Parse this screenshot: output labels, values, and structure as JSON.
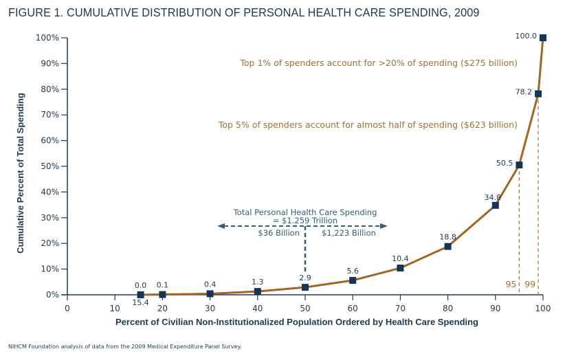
{
  "title": "FIGURE 1. CUMULATIVE DISTRIBUTION OF PERSONAL HEALTH CARE SPENDING, 2009",
  "source": "NIHCM Foundation analysis of data from the 2009 Medical Expenditure Panel Survey.",
  "colors": {
    "curve": "#a8621c",
    "marker": "#12365a",
    "axis": "#1b3a57",
    "annotation": "#a66f2e",
    "split": "#2f5f7a"
  },
  "chart_data": {
    "type": "line",
    "title": "FIGURE 1. CUMULATIVE DISTRIBUTION OF PERSONAL HEALTH CARE SPENDING, 2009",
    "xlabel": "Percent of Civilian Non-Institutionalized Population Ordered by Health Care Spending",
    "ylabel": "Cumulative Percent of Total Spending",
    "xlim": [
      0,
      100
    ],
    "ylim": [
      0,
      100
    ],
    "xticks": [
      "0",
      "10",
      "20",
      "30",
      "40",
      "50",
      "60",
      "70",
      "80",
      "90",
      "100"
    ],
    "yticks": [
      "0%",
      "10%",
      "20%",
      "30%",
      "40%",
      "50%",
      "60%",
      "70%",
      "80%",
      "90%",
      "100%"
    ],
    "x": [
      15.4,
      20,
      30,
      40,
      50,
      60,
      70,
      80,
      90,
      95,
      99,
      100
    ],
    "y": [
      0.0,
      0.1,
      0.4,
      1.3,
      2.9,
      5.6,
      10.4,
      18.8,
      34.8,
      50.5,
      78.2,
      100.0
    ],
    "point_labels": [
      "0.0",
      "0.1",
      "0.4",
      "1.3",
      "2.9",
      "5.6",
      "10.4",
      "18.8",
      "34.8",
      "50.5",
      "78.2",
      "100.0"
    ],
    "x_extra_label": "15.4",
    "reference_lines": [
      {
        "x": 95,
        "label": "95"
      },
      {
        "x": 99,
        "label": "99"
      }
    ],
    "annotations": [
      "Top 1% of spenders account for >20% of spending ($275 billion)",
      "Top 5% of spenders account for almost half of spending ($623 billion)"
    ],
    "split": {
      "line1": "Total Personal Health Care Spending",
      "line2": "= $1.259 Trillion",
      "left": "$36 Billion",
      "right": "$1,223 Billion",
      "x": 50
    },
    "grid": false
  }
}
